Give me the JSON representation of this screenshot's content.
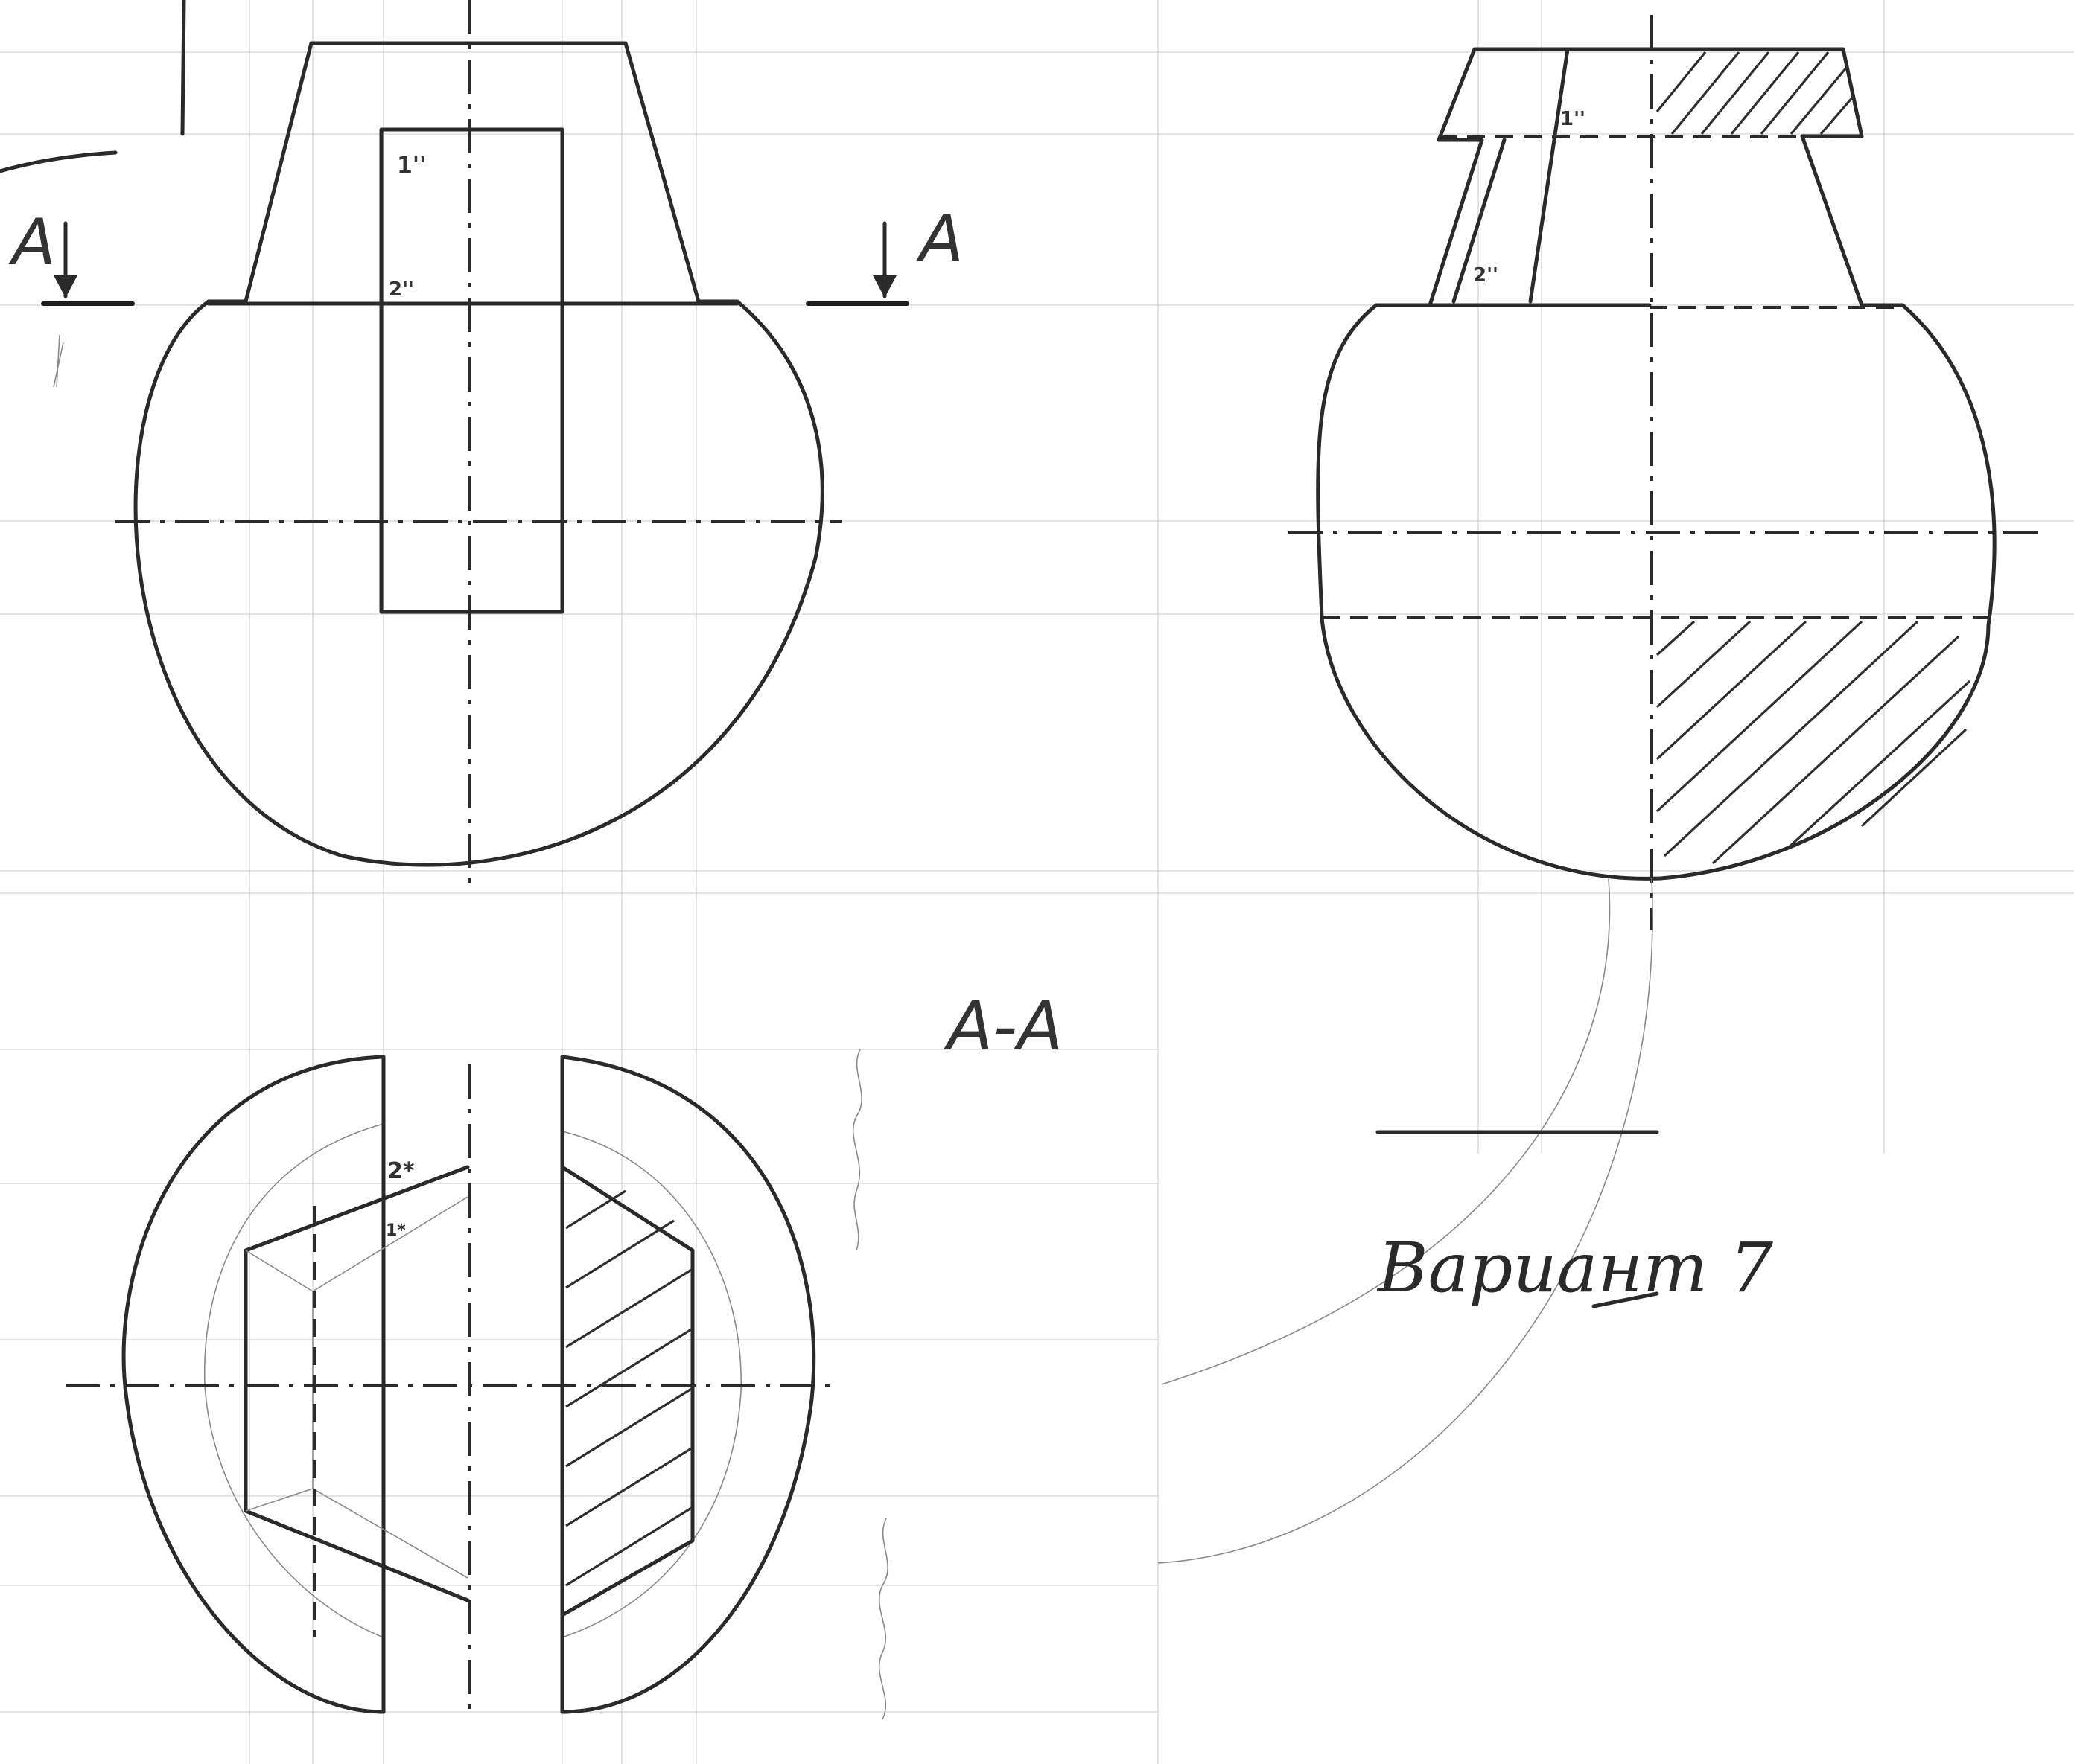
{
  "section_marker": {
    "left_letter": "A",
    "right_letter": "A"
  },
  "section_title": "A-A",
  "front_view_points": {
    "p1": "1''",
    "p2": "2''"
  },
  "side_view_points": {
    "p1": "1''",
    "p2": "2''"
  },
  "section_points": {
    "p2": "2*",
    "p1": "1*"
  },
  "variant_label": "Вариант 7",
  "colors": {
    "line": "#2a2a2a",
    "grid": "#c9c9c9",
    "paper": "#ffffff"
  }
}
